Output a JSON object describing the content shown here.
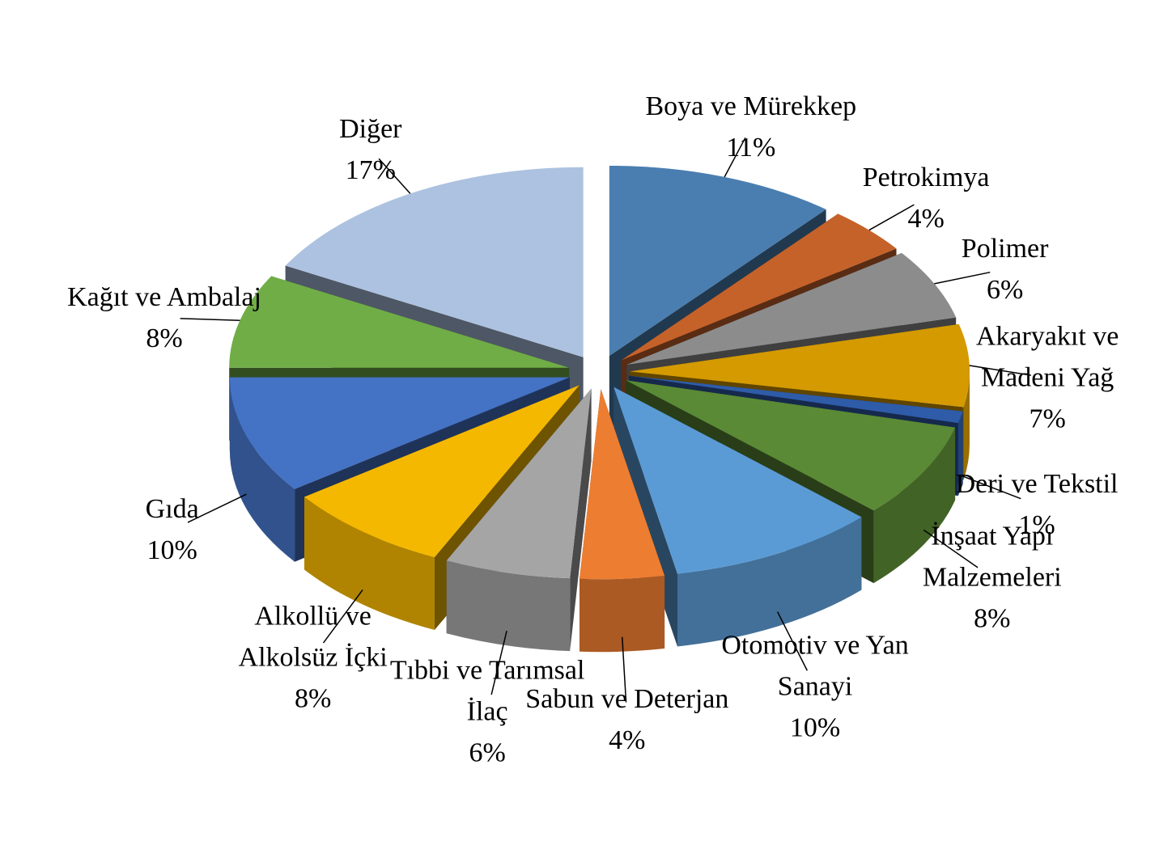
{
  "chart_data": {
    "type": "pie",
    "categories": [
      "Boya ve Mürekkep",
      "Petrokimya",
      "Polimer",
      "Akaryakıt ve Madeni Yağ",
      "Deri ve Tekstil",
      "İnşaat Yapı Malzemeleri",
      "Otomotiv ve Yan Sanayi",
      "Sabun ve Deterjan",
      "Tıbbi ve Tarımsal İlaç",
      "Alkollü ve Alkolsüz İçki",
      "Gıda",
      "Kağıt ve Ambalaj",
      "Diğer"
    ],
    "values": [
      11,
      4,
      6,
      7,
      1,
      8,
      10,
      4,
      6,
      8,
      10,
      8,
      17
    ],
    "value_labels": [
      "11%",
      "4%",
      "6%",
      "7%",
      "1%",
      "8%",
      "10%",
      "4%",
      "6%",
      "8%",
      "10%",
      "8%",
      "17%"
    ],
    "colors": [
      "#4a7eb0",
      "#c5622a",
      "#8c8c8c",
      "#d49a00",
      "#2e5ca8",
      "#5a8a35",
      "#5b9bd5",
      "#ed7d31",
      "#a5a5a5",
      "#f5b800",
      "#4472c4",
      "#70ad47",
      "#adc2e0"
    ]
  }
}
